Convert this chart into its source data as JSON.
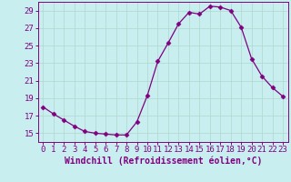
{
  "x": [
    0,
    1,
    2,
    3,
    4,
    5,
    6,
    7,
    8,
    9,
    10,
    11,
    12,
    13,
    14,
    15,
    16,
    17,
    18,
    19,
    20,
    21,
    22,
    23
  ],
  "y": [
    18.0,
    17.2,
    16.5,
    15.8,
    15.2,
    15.0,
    14.9,
    14.8,
    14.8,
    16.3,
    19.3,
    23.2,
    25.3,
    27.5,
    28.8,
    28.6,
    29.5,
    29.4,
    29.0,
    27.1,
    23.5,
    21.5,
    20.2,
    19.2
  ],
  "line_color": "#800080",
  "marker": "D",
  "marker_size": 2.5,
  "bg_color": "#c8eef0",
  "grid_color": "#b0d8cc",
  "xlabel": "Windchill (Refroidissement éolien,°C)",
  "xlabel_fontsize": 7,
  "tick_fontsize": 6.5,
  "ylim": [
    14.0,
    30.0
  ],
  "yticks": [
    15,
    17,
    19,
    21,
    23,
    25,
    27,
    29
  ],
  "xlim": [
    -0.5,
    23.5
  ],
  "xticks": [
    0,
    1,
    2,
    3,
    4,
    5,
    6,
    7,
    8,
    9,
    10,
    11,
    12,
    13,
    14,
    15,
    16,
    17,
    18,
    19,
    20,
    21,
    22,
    23
  ]
}
